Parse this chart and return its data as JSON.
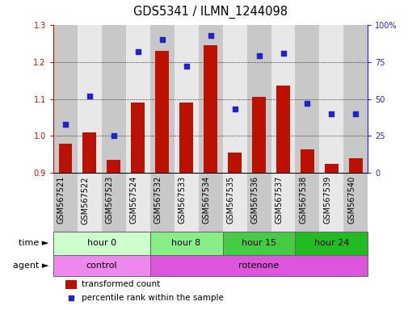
{
  "title": "GDS5341 / ILMN_1244098",
  "samples": [
    "GSM567521",
    "GSM567522",
    "GSM567523",
    "GSM567524",
    "GSM567532",
    "GSM567533",
    "GSM567534",
    "GSM567535",
    "GSM567536",
    "GSM567537",
    "GSM567538",
    "GSM567539",
    "GSM567540"
  ],
  "transformed_count": [
    0.979,
    1.01,
    0.935,
    1.09,
    1.23,
    1.09,
    1.245,
    0.955,
    1.105,
    1.135,
    0.965,
    0.925,
    0.94
  ],
  "percentile_rank": [
    33,
    52,
    25,
    82,
    90,
    72,
    93,
    43,
    79,
    81,
    47,
    40,
    40
  ],
  "ylim_left": [
    0.9,
    1.3
  ],
  "ylim_right": [
    0,
    100
  ],
  "yticks_left": [
    0.9,
    1.0,
    1.1,
    1.2,
    1.3
  ],
  "yticks_right": [
    0,
    25,
    50,
    75,
    100
  ],
  "bar_color": "#bb1100",
  "dot_color": "#2222cc",
  "bar_width": 0.55,
  "time_groups": [
    {
      "label": "hour 0",
      "start": 0,
      "end": 4,
      "color": "#ccffcc"
    },
    {
      "label": "hour 8",
      "start": 4,
      "end": 7,
      "color": "#88ee88"
    },
    {
      "label": "hour 15",
      "start": 7,
      "end": 10,
      "color": "#44cc44"
    },
    {
      "label": "hour 24",
      "start": 10,
      "end": 13,
      "color": "#22bb22"
    }
  ],
  "agent_groups": [
    {
      "label": "control",
      "start": 0,
      "end": 4,
      "color": "#ee88ee"
    },
    {
      "label": "rotenone",
      "start": 4,
      "end": 13,
      "color": "#dd55dd"
    }
  ],
  "legend_bar_label": "transformed count",
  "legend_dot_label": "percentile rank within the sample",
  "time_label": "time",
  "agent_label": "agent",
  "grid_color": "#000000",
  "background_color": "#ffffff",
  "col_colors": [
    "#c8c8c8",
    "#e8e8e8"
  ],
  "title_fontsize": 10.5,
  "tick_fontsize": 7,
  "label_fontsize": 8.5
}
